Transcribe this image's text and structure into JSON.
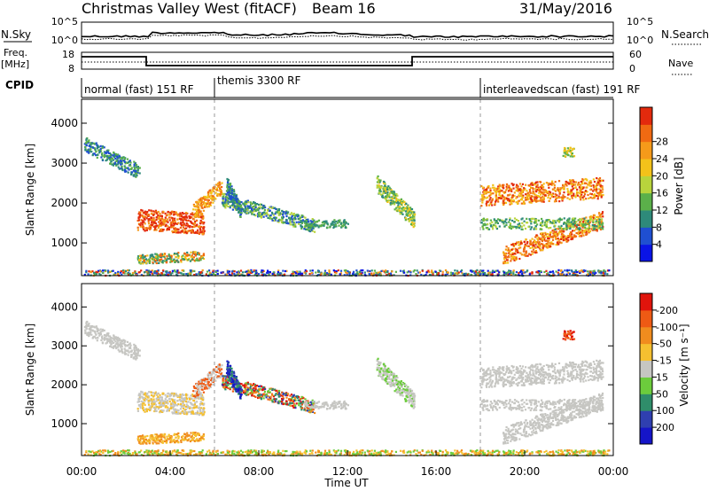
{
  "header": {
    "station": "Christmas Valley West (fitACF)",
    "beam": "Beam 16",
    "date": "31/May/2016"
  },
  "side_labels": {
    "nsky": "N.Sky",
    "freq_line1": "Freq.",
    "freq_line2": "[MHz]",
    "cpid": "CPID",
    "nsearch": "N.Search",
    "nave": "Nave"
  },
  "noise_panel": {
    "left_top": "10^5",
    "left_bottom": "10^0",
    "right_top": "10^5",
    "right_bottom": "10^0"
  },
  "freq_panel": {
    "left_top": "18",
    "left_bottom": "8",
    "right_top": "60",
    "right_bottom": "0"
  },
  "cpid_segments": [
    {
      "label": "normal (fast) 151 RF",
      "start_hour": 0
    },
    {
      "label": "themis 3300 RF",
      "start_hour": 6
    },
    {
      "label": "interleavedscan (fast) 191 RF",
      "start_hour": 18
    }
  ],
  "chart_data": [
    {
      "type": "heatmap",
      "name": "power",
      "ylabel": "Slant Range [km]",
      "xlabel": "",
      "xlim_hours": [
        0,
        24
      ],
      "ylim_km": [
        180,
        4600
      ],
      "yticks": [
        "1000",
        "2000",
        "3000",
        "4000"
      ],
      "colorbar": {
        "label": "Power [dB]",
        "ticks": [
          "4",
          "8",
          "12",
          "16",
          "20",
          "24",
          "28"
        ],
        "colors": [
          "#0a14e6",
          "#1f4fd1",
          "#2e8a7a",
          "#5bb04a",
          "#b8d43c",
          "#f3c21a",
          "#f59a1a",
          "#f06a12",
          "#e32a0d"
        ]
      }
    },
    {
      "type": "heatmap",
      "name": "velocity",
      "ylabel": "Slant Range [km]",
      "xlabel": "Time UT",
      "xlim_hours": [
        0,
        24
      ],
      "ylim_km": [
        180,
        4600
      ],
      "yticks": [
        "1000",
        "2000",
        "3000",
        "4000"
      ],
      "xticks": [
        "00:00",
        "04:00",
        "08:00",
        "12:00",
        "16:00",
        "20:00",
        "00:00"
      ],
      "colorbar": {
        "label": "Velocity [m s⁻¹]",
        "ticks": [
          "200",
          "100",
          "50",
          "15",
          "-15",
          "-50",
          "-100",
          "-200"
        ],
        "colors": [
          "#1515c8",
          "#2f3fb0",
          "#2f8d6a",
          "#6ccc3c",
          "#c6c6c2",
          "#f5c030",
          "#f08c1e",
          "#ee5a14",
          "#e0140c"
        ]
      }
    }
  ]
}
